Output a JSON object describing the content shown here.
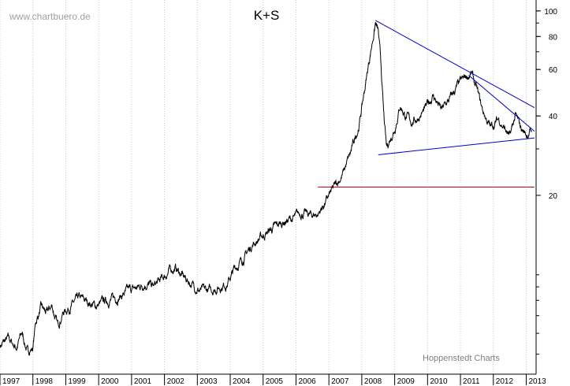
{
  "chart_data": {
    "type": "line",
    "title": "K+S",
    "watermark": "www.chartbuero.de",
    "source": "Hoppenstedt Charts",
    "y_scale": "log",
    "ylim": [
      4.2,
      110
    ],
    "y_ticks": [
      100,
      80,
      60,
      40,
      20
    ],
    "y_tick_labels": [
      "100",
      "80",
      "60",
      "40",
      "20"
    ],
    "x_ticks": [
      "1997",
      "1998",
      "1999",
      "2000",
      "2001",
      "2002",
      "2003",
      "2004",
      "2005",
      "2006",
      "2007",
      "2008",
      "2009",
      "2010",
      "2011",
      "2012",
      "2013"
    ],
    "x_tick_labels": [
      "1997",
      "1998",
      "1999",
      "2000",
      "2001",
      "2002",
      "2003",
      "2004",
      "2005",
      "2006",
      "2007",
      "2008",
      "2009",
      "2010",
      "2011",
      "2012",
      "2013"
    ],
    "grid": "vertical dotted",
    "colors": {
      "price": "#000000",
      "trendline": "#0000c8",
      "support": "#cc0000",
      "grid": "#c8c8c8"
    },
    "series": [
      {
        "values": [
          [
            "1997-01-01",
            5.4
          ],
          [
            "1997-04-01",
            5.7
          ],
          [
            "1997-07-01",
            5.3
          ],
          [
            "1997-09-01",
            6.0
          ],
          [
            "1997-11-01",
            5.1
          ],
          [
            "1998-01-01",
            5.3
          ],
          [
            "1998-02-01",
            6.6
          ],
          [
            "1998-04-01",
            7.5
          ],
          [
            "1998-06-01",
            7.1
          ],
          [
            "1998-08-01",
            7.6
          ],
          [
            "1998-10-01",
            6.4
          ],
          [
            "1998-12-01",
            7.2
          ],
          [
            "1999-02-01",
            7.5
          ],
          [
            "1999-04-01",
            7.8
          ],
          [
            "1999-06-01",
            8.1
          ],
          [
            "1999-09-01",
            7.9
          ],
          [
            "1999-12-01",
            7.6
          ],
          [
            "2000-03-01",
            7.9
          ],
          [
            "2000-06-01",
            8.1
          ],
          [
            "2000-09-01",
            8.3
          ],
          [
            "2000-12-01",
            8.7
          ],
          [
            "2001-03-01",
            8.9
          ],
          [
            "2001-06-01",
            9.3
          ],
          [
            "2001-09-01",
            9.0
          ],
          [
            "2001-12-01",
            9.6
          ],
          [
            "2002-03-01",
            10.4
          ],
          [
            "2002-05-01",
            10.6
          ],
          [
            "2002-08-01",
            9.8
          ],
          [
            "2002-11-01",
            9.2
          ],
          [
            "2003-02-01",
            8.7
          ],
          [
            "2003-05-01",
            8.7
          ],
          [
            "2003-08-01",
            8.9
          ],
          [
            "2003-12-01",
            9.3
          ],
          [
            "2004-03-01",
            10.7
          ],
          [
            "2004-06-01",
            11.6
          ],
          [
            "2004-09-01",
            13.0
          ],
          [
            "2004-12-01",
            13.8
          ],
          [
            "2005-03-01",
            14.6
          ],
          [
            "2005-06-01",
            15.3
          ],
          [
            "2005-09-01",
            16.0
          ],
          [
            "2005-12-01",
            16.3
          ],
          [
            "2006-03-01",
            17.2
          ],
          [
            "2006-06-01",
            16.8
          ],
          [
            "2006-09-01",
            17.0
          ],
          [
            "2006-12-01",
            19.0
          ],
          [
            "2007-03-01",
            21.5
          ],
          [
            "2007-06-01",
            24.0
          ],
          [
            "2007-09-01",
            29.0
          ],
          [
            "2007-12-01",
            37.0
          ],
          [
            "2008-02-01",
            50.0
          ],
          [
            "2008-04-01",
            68.0
          ],
          [
            "2008-06-01",
            90.0
          ],
          [
            "2008-07-01",
            83.0
          ],
          [
            "2008-08-01",
            62.0
          ],
          [
            "2008-09-01",
            40.0
          ],
          [
            "2008-10-01",
            30.0
          ],
          [
            "2008-11-01",
            32.0
          ],
          [
            "2009-01-01",
            36.0
          ],
          [
            "2009-03-01",
            44.0
          ],
          [
            "2009-05-01",
            40.0
          ],
          [
            "2009-07-01",
            38.0
          ],
          [
            "2009-09-01",
            39.0
          ],
          [
            "2009-12-01",
            42.0
          ],
          [
            "2010-03-01",
            48.0
          ],
          [
            "2010-06-01",
            42.0
          ],
          [
            "2010-09-01",
            46.0
          ],
          [
            "2010-12-01",
            52.0
          ],
          [
            "2011-03-01",
            56.0
          ],
          [
            "2011-05-01",
            58.0
          ],
          [
            "2011-07-01",
            50.0
          ],
          [
            "2011-09-01",
            42.0
          ],
          [
            "2011-12-01",
            36.0
          ],
          [
            "2012-03-01",
            39.0
          ],
          [
            "2012-05-01",
            36.0
          ],
          [
            "2012-07-01",
            33.0
          ],
          [
            "2012-09-01",
            40.0
          ],
          [
            "2012-11-01",
            36.0
          ],
          [
            "2013-01-01",
            34.0
          ],
          [
            "2013-03-01",
            35.0
          ]
        ]
      }
    ],
    "trendlines": [
      {
        "color": "blue",
        "from": [
          "2008-06-01",
          92
        ],
        "to": [
          "2013-04-01",
          43
        ]
      },
      {
        "color": "blue",
        "from": [
          "2011-04-01",
          57
        ],
        "to": [
          "2013-04-01",
          35
        ]
      },
      {
        "color": "blue",
        "from": [
          "2008-07-01",
          28.5
        ],
        "to": [
          "2013-04-01",
          33
        ]
      },
      {
        "color": "red",
        "from": [
          "2006-09-01",
          21.5
        ],
        "to": [
          "2013-04-01",
          21.5
        ]
      }
    ]
  }
}
